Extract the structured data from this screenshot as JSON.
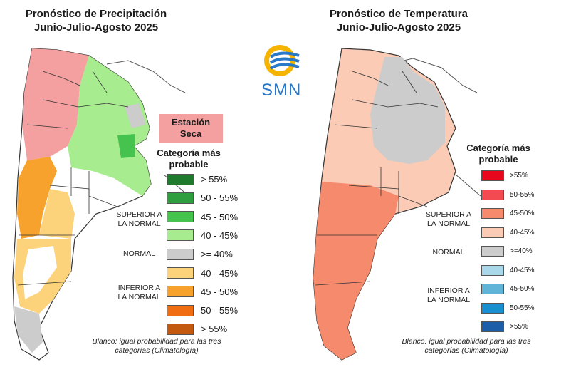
{
  "precip": {
    "title": [
      "Pronóstico de Precipitación",
      "Junio-Julio-Agosto 2025"
    ],
    "badge": [
      "Estación",
      "Seca"
    ],
    "legend_title": [
      "Categoría más",
      "probable"
    ],
    "superior_label": [
      "SUPERIOR A",
      "LA NORMAL"
    ],
    "normal_label": "NORMAL",
    "inferior_label": [
      "INFERIOR A",
      "LA NORMAL"
    ],
    "swatches": [
      {
        "label": "> 55%",
        "color": "#1f7a2e"
      },
      {
        "label": "50 - 55%",
        "color": "#2e9e3e"
      },
      {
        "label": "45 - 50%",
        "color": "#46c24f"
      },
      {
        "label": "40 - 45%",
        "color": "#a7ec8e"
      },
      {
        "label": ">= 40%",
        "color": "#cccccc"
      },
      {
        "label": "40 - 45%",
        "color": "#fcd27a"
      },
      {
        "label": "45 - 50%",
        "color": "#f7a22c"
      },
      {
        "label": "50 - 55%",
        "color": "#f06d12"
      },
      {
        "label": "> 55%",
        "color": "#c2590f"
      }
    ],
    "note": [
      "Blanco: igual probabilidad para las tres",
      "categorías (Climatología)"
    ]
  },
  "temp": {
    "title": [
      "Pronóstico de Temperatura",
      "Junio-Julio-Agosto 2025"
    ],
    "legend_title": [
      "Categoría más",
      "probable"
    ],
    "superior_label": [
      "SUPERIOR A",
      "LA NORMAL"
    ],
    "normal_label": "NORMAL",
    "inferior_label": [
      "INFERIOR A",
      "LA NORMAL"
    ],
    "swatches": [
      {
        "label": ">55%",
        "color": "#e8061c"
      },
      {
        "label": "50-55%",
        "color": "#f24a50"
      },
      {
        "label": "45-50%",
        "color": "#f58a6c"
      },
      {
        "label": "40-45%",
        "color": "#fbcbb6"
      },
      {
        "label": ">=40%",
        "color": "#cccccc"
      },
      {
        "label": "40-45%",
        "color": "#a8d8ea"
      },
      {
        "label": "45-50%",
        "color": "#5fb4d8"
      },
      {
        "label": "50-55%",
        "color": "#1a8fcf"
      },
      {
        "label": ">55%",
        "color": "#1c5fa8"
      }
    ],
    "note": [
      "Blanco: igual probabilidad para las tres",
      "categorías (Climatología)"
    ]
  },
  "logo": {
    "text": "SMN"
  }
}
